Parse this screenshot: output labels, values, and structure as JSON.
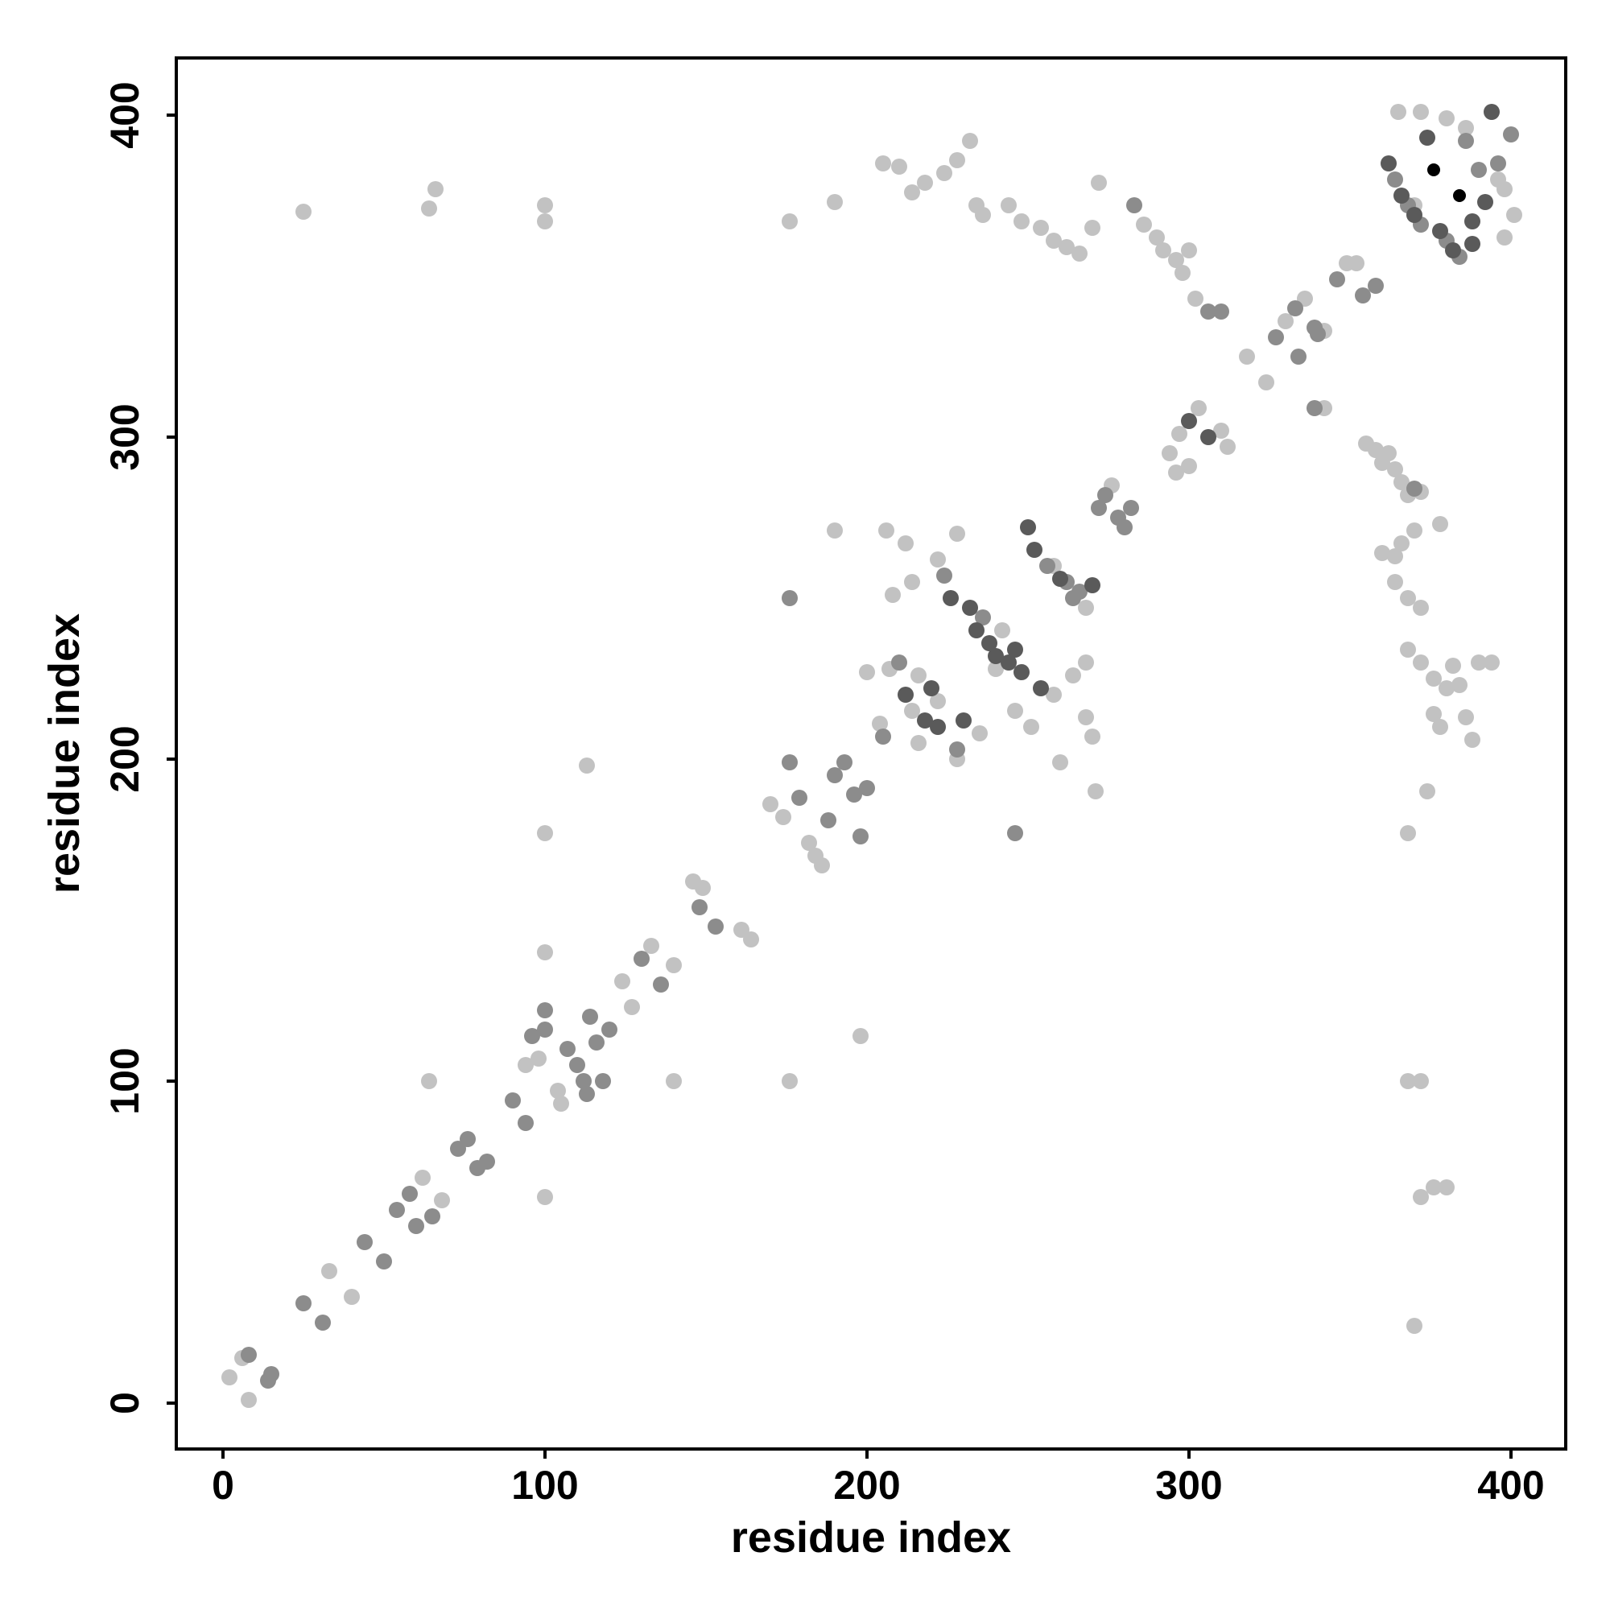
{
  "chart_data": {
    "type": "scatter",
    "title": "",
    "xlabel": "residue index",
    "ylabel": "residue index",
    "xlim": [
      -15,
      420
    ],
    "ylim": [
      -15,
      418
    ],
    "x_ticks": [
      0,
      100,
      200,
      300,
      400
    ],
    "y_ticks": [
      0,
      100,
      200,
      300,
      400
    ],
    "x_tick_labels": [
      "0",
      "100",
      "200",
      "300",
      "400"
    ],
    "y_tick_labels": [
      "0",
      "100",
      "200",
      "300",
      "400"
    ],
    "grid": false,
    "legend": "none",
    "colors": {
      "light": "#c2c2c2",
      "mid": "#8c8c8c",
      "dark": "#5a5a5a",
      "black": "#000000"
    },
    "points": [
      [
        2,
        8,
        "light"
      ],
      [
        6,
        14,
        "light"
      ],
      [
        8,
        15,
        "mid"
      ],
      [
        8,
        1,
        "light"
      ],
      [
        14,
        7,
        "mid"
      ],
      [
        15,
        9,
        "mid"
      ],
      [
        25,
        31,
        "mid"
      ],
      [
        31,
        25,
        "mid"
      ],
      [
        33,
        41,
        "light"
      ],
      [
        40,
        33,
        "light"
      ],
      [
        44,
        50,
        "mid"
      ],
      [
        50,
        44,
        "mid"
      ],
      [
        54,
        60,
        "mid"
      ],
      [
        58,
        65,
        "mid"
      ],
      [
        60,
        55,
        "mid"
      ],
      [
        62,
        70,
        "light"
      ],
      [
        65,
        58,
        "mid"
      ],
      [
        68,
        63,
        "light"
      ],
      [
        73,
        79,
        "mid"
      ],
      [
        76,
        82,
        "mid"
      ],
      [
        79,
        73,
        "mid"
      ],
      [
        82,
        75,
        "mid"
      ],
      [
        90,
        94,
        "mid"
      ],
      [
        94,
        87,
        "mid"
      ],
      [
        94,
        105,
        "light"
      ],
      [
        96,
        114,
        "mid"
      ],
      [
        98,
        107,
        "light"
      ],
      [
        100,
        116,
        "mid"
      ],
      [
        100,
        122,
        "mid"
      ],
      [
        104,
        97,
        "light"
      ],
      [
        105,
        93,
        "light"
      ],
      [
        107,
        110,
        "mid"
      ],
      [
        110,
        105,
        "mid"
      ],
      [
        112,
        100,
        "mid"
      ],
      [
        113,
        96,
        "mid"
      ],
      [
        114,
        120,
        "mid"
      ],
      [
        116,
        112,
        "mid"
      ],
      [
        118,
        100,
        "mid"
      ],
      [
        120,
        116,
        "mid"
      ],
      [
        124,
        131,
        "light"
      ],
      [
        127,
        123,
        "light"
      ],
      [
        130,
        138,
        "mid"
      ],
      [
        133,
        142,
        "light"
      ],
      [
        136,
        130,
        "mid"
      ],
      [
        140,
        136,
        "light"
      ],
      [
        146,
        162,
        "light"
      ],
      [
        149,
        160,
        "light"
      ],
      [
        148,
        154,
        "mid"
      ],
      [
        153,
        148,
        "mid"
      ],
      [
        161,
        147,
        "light"
      ],
      [
        164,
        144,
        "light"
      ],
      [
        170,
        186,
        "light"
      ],
      [
        174,
        182,
        "light"
      ],
      [
        176,
        199,
        "mid"
      ],
      [
        179,
        188,
        "mid"
      ],
      [
        182,
        174,
        "light"
      ],
      [
        184,
        170,
        "light"
      ],
      [
        186,
        167,
        "light"
      ],
      [
        188,
        181,
        "mid"
      ],
      [
        190,
        195,
        "mid"
      ],
      [
        193,
        199,
        "mid"
      ],
      [
        196,
        189,
        "mid"
      ],
      [
        198,
        176,
        "mid"
      ],
      [
        200,
        191,
        "mid"
      ],
      [
        205,
        207,
        "mid"
      ],
      [
        207,
        228,
        "light"
      ],
      [
        210,
        230,
        "mid"
      ],
      [
        212,
        220,
        "dark"
      ],
      [
        214,
        215,
        "light"
      ],
      [
        216,
        226,
        "light"
      ],
      [
        218,
        212,
        "dark"
      ],
      [
        220,
        222,
        "dark"
      ],
      [
        222,
        210,
        "dark"
      ],
      [
        224,
        257,
        "mid"
      ],
      [
        226,
        250,
        "dark"
      ],
      [
        228,
        203,
        "mid"
      ],
      [
        230,
        212,
        "dark"
      ],
      [
        232,
        247,
        "dark"
      ],
      [
        234,
        240,
        "dark"
      ],
      [
        236,
        244,
        "mid"
      ],
      [
        238,
        236,
        "dark"
      ],
      [
        240,
        232,
        "dark"
      ],
      [
        242,
        240,
        "light"
      ],
      [
        244,
        230,
        "dark"
      ],
      [
        246,
        234,
        "dark"
      ],
      [
        248,
        227,
        "dark"
      ],
      [
        250,
        272,
        "dark"
      ],
      [
        252,
        265,
        "dark"
      ],
      [
        254,
        222,
        "dark"
      ],
      [
        256,
        260,
        "mid"
      ],
      [
        258,
        260,
        "light"
      ],
      [
        260,
        256,
        "dark"
      ],
      [
        262,
        255,
        "mid"
      ],
      [
        264,
        250,
        "mid"
      ],
      [
        266,
        252,
        "mid"
      ],
      [
        268,
        247,
        "light"
      ],
      [
        270,
        254,
        "dark"
      ],
      [
        272,
        278,
        "mid"
      ],
      [
        274,
        282,
        "mid"
      ],
      [
        276,
        285,
        "light"
      ],
      [
        278,
        275,
        "mid"
      ],
      [
        280,
        272,
        "mid"
      ],
      [
        282,
        278,
        "mid"
      ],
      [
        240,
        228,
        "light"
      ],
      [
        246,
        215,
        "light"
      ],
      [
        251,
        210,
        "light"
      ],
      [
        258,
        220,
        "light"
      ],
      [
        264,
        226,
        "light"
      ],
      [
        268,
        230,
        "light"
      ],
      [
        222,
        262,
        "light"
      ],
      [
        228,
        270,
        "light"
      ],
      [
        214,
        255,
        "light"
      ],
      [
        208,
        251,
        "light"
      ],
      [
        200,
        227,
        "light"
      ],
      [
        204,
        211,
        "light"
      ],
      [
        206,
        271,
        "light"
      ],
      [
        212,
        267,
        "light"
      ],
      [
        260,
        199,
        "light"
      ],
      [
        228,
        200,
        "light"
      ],
      [
        246,
        177,
        "mid"
      ],
      [
        235,
        208,
        "light"
      ],
      [
        216,
        205,
        "light"
      ],
      [
        222,
        218,
        "light"
      ],
      [
        294,
        295,
        "light"
      ],
      [
        297,
        301,
        "light"
      ],
      [
        300,
        305,
        "dark"
      ],
      [
        303,
        309,
        "light"
      ],
      [
        306,
        300,
        "dark"
      ],
      [
        310,
        302,
        "light"
      ],
      [
        312,
        297,
        "light"
      ],
      [
        296,
        289,
        "light"
      ],
      [
        300,
        291,
        "light"
      ],
      [
        318,
        325,
        "light"
      ],
      [
        324,
        317,
        "light"
      ],
      [
        327,
        331,
        "mid"
      ],
      [
        330,
        336,
        "light"
      ],
      [
        333,
        340,
        "mid"
      ],
      [
        336,
        343,
        "light"
      ],
      [
        339,
        334,
        "mid"
      ],
      [
        334,
        325,
        "mid"
      ],
      [
        339,
        309,
        "mid"
      ],
      [
        342,
        309,
        "light"
      ],
      [
        346,
        349,
        "mid"
      ],
      [
        349,
        354,
        "light"
      ],
      [
        352,
        354,
        "light"
      ],
      [
        354,
        344,
        "mid"
      ],
      [
        358,
        347,
        "mid"
      ],
      [
        355,
        298,
        "light"
      ],
      [
        358,
        296,
        "light"
      ],
      [
        360,
        292,
        "light"
      ],
      [
        362,
        295,
        "light"
      ],
      [
        364,
        290,
        "light"
      ],
      [
        366,
        286,
        "light"
      ],
      [
        368,
        282,
        "light"
      ],
      [
        370,
        284,
        "mid"
      ],
      [
        360,
        264,
        "light"
      ],
      [
        364,
        263,
        "light"
      ],
      [
        366,
        267,
        "light"
      ],
      [
        370,
        271,
        "light"
      ],
      [
        372,
        283,
        "light"
      ],
      [
        378,
        273,
        "light"
      ],
      [
        364,
        255,
        "light"
      ],
      [
        368,
        250,
        "light"
      ],
      [
        372,
        247,
        "light"
      ],
      [
        368,
        234,
        "light"
      ],
      [
        372,
        230,
        "light"
      ],
      [
        376,
        225,
        "light"
      ],
      [
        380,
        222,
        "light"
      ],
      [
        382,
        229,
        "light"
      ],
      [
        384,
        223,
        "light"
      ],
      [
        386,
        213,
        "light"
      ],
      [
        388,
        206,
        "light"
      ],
      [
        390,
        230,
        "light"
      ],
      [
        394,
        230,
        "light"
      ],
      [
        376,
        214,
        "light"
      ],
      [
        378,
        210,
        "light"
      ],
      [
        374,
        190,
        "light"
      ],
      [
        368,
        177,
        "light"
      ],
      [
        368,
        100,
        "light"
      ],
      [
        372,
        100,
        "light"
      ],
      [
        372,
        64,
        "light"
      ],
      [
        376,
        67,
        "light"
      ],
      [
        380,
        67,
        "light"
      ],
      [
        370,
        24,
        "light"
      ],
      [
        362,
        385,
        "dark"
      ],
      [
        364,
        380,
        "mid"
      ],
      [
        366,
        375,
        "dark"
      ],
      [
        368,
        372,
        "mid"
      ],
      [
        370,
        369,
        "dark"
      ],
      [
        372,
        366,
        "mid"
      ],
      [
        374,
        393,
        "dark"
      ],
      [
        376,
        383,
        "black"
      ],
      [
        378,
        364,
        "dark"
      ],
      [
        380,
        361,
        "mid"
      ],
      [
        382,
        358,
        "dark"
      ],
      [
        384,
        375,
        "black"
      ],
      [
        386,
        392,
        "mid"
      ],
      [
        388,
        367,
        "dark"
      ],
      [
        390,
        383,
        "mid"
      ],
      [
        392,
        373,
        "dark"
      ],
      [
        394,
        401,
        "dark"
      ],
      [
        396,
        385,
        "mid"
      ],
      [
        398,
        377,
        "light"
      ],
      [
        400,
        394,
        "mid"
      ],
      [
        401,
        369,
        "light"
      ],
      [
        365,
        401,
        "light"
      ],
      [
        372,
        401,
        "light"
      ],
      [
        380,
        399,
        "light"
      ],
      [
        386,
        396,
        "light"
      ],
      [
        396,
        380,
        "light"
      ],
      [
        398,
        362,
        "light"
      ],
      [
        370,
        372,
        "light"
      ],
      [
        384,
        356,
        "mid"
      ],
      [
        388,
        360,
        "dark"
      ],
      [
        205,
        385,
        "light"
      ],
      [
        210,
        384,
        "light"
      ],
      [
        214,
        376,
        "light"
      ],
      [
        218,
        379,
        "light"
      ],
      [
        224,
        382,
        "light"
      ],
      [
        228,
        386,
        "light"
      ],
      [
        232,
        392,
        "light"
      ],
      [
        234,
        372,
        "light"
      ],
      [
        236,
        369,
        "light"
      ],
      [
        244,
        372,
        "light"
      ],
      [
        248,
        367,
        "light"
      ],
      [
        254,
        365,
        "light"
      ],
      [
        258,
        361,
        "light"
      ],
      [
        262,
        359,
        "light"
      ],
      [
        266,
        357,
        "light"
      ],
      [
        270,
        365,
        "light"
      ],
      [
        272,
        379,
        "light"
      ],
      [
        283,
        372,
        "mid"
      ],
      [
        286,
        366,
        "light"
      ],
      [
        290,
        362,
        "light"
      ],
      [
        292,
        358,
        "light"
      ],
      [
        296,
        355,
        "light"
      ],
      [
        298,
        351,
        "light"
      ],
      [
        300,
        358,
        "light"
      ],
      [
        302,
        343,
        "light"
      ],
      [
        306,
        339,
        "mid"
      ],
      [
        310,
        339,
        "mid"
      ],
      [
        340,
        332,
        "mid"
      ],
      [
        342,
        333,
        "light"
      ],
      [
        25,
        370,
        "light"
      ],
      [
        64,
        371,
        "light"
      ],
      [
        66,
        377,
        "light"
      ],
      [
        100,
        372,
        "light"
      ],
      [
        100,
        367,
        "light"
      ],
      [
        176,
        367,
        "light"
      ],
      [
        190,
        373,
        "light"
      ],
      [
        190,
        271,
        "light"
      ],
      [
        176,
        250,
        "mid"
      ],
      [
        113,
        198,
        "light"
      ],
      [
        100,
        177,
        "light"
      ],
      [
        100,
        140,
        "light"
      ],
      [
        64,
        100,
        "light"
      ],
      [
        100,
        64,
        "light"
      ],
      [
        140,
        100,
        "light"
      ],
      [
        176,
        100,
        "light"
      ],
      [
        198,
        114,
        "light"
      ],
      [
        271,
        190,
        "light"
      ],
      [
        270,
        207,
        "light"
      ],
      [
        268,
        213,
        "light"
      ]
    ]
  }
}
